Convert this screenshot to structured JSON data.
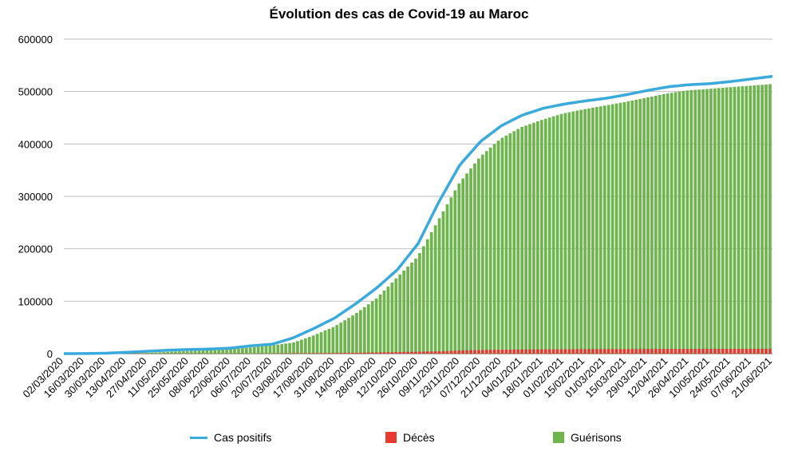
{
  "chart_data": {
    "type": "bar",
    "title": "Évolution des cas de Covid-19 au Maroc",
    "xlabel": "",
    "ylabel": "",
    "ylim": [
      0,
      600000
    ],
    "yticks": [
      0,
      100000,
      200000,
      300000,
      400000,
      500000,
      600000
    ],
    "ytick_labels": [
      "0",
      "100000",
      "200000",
      "300000",
      "400000",
      "500000",
      "600000"
    ],
    "x_tick_labels": [
      "02/03/2020",
      "16/03/2020",
      "30/03/2020",
      "13/04/2020",
      "27/04/2020",
      "11/05/2020",
      "25/05/2020",
      "08/06/2020",
      "22/06/2020",
      "06/07/2020",
      "20/07/2020",
      "03/08/2020",
      "17/08/2020",
      "31/08/2020",
      "14/09/2020",
      "28/09/2020",
      "12/10/2020",
      "26/10/2020",
      "09/11/2020",
      "23/11/2020",
      "07/12/2020",
      "21/12/2020",
      "04/01/2021",
      "18/01/2021",
      "01/02/2021",
      "15/02/2021",
      "01/03/2021",
      "15/03/2021",
      "29/03/2021",
      "12/04/2021",
      "26/04/2021",
      "10/05/2021",
      "24/05/2021",
      "07/06/2021",
      "21/06/2021"
    ],
    "grid": true,
    "legend_position": "bottom",
    "series": [
      {
        "name": "Cas positifs",
        "type": "line",
        "color": "#3aa9dc",
        "values": [
          1,
          150,
          800,
          2500,
          4500,
          6500,
          7800,
          8800,
          10500,
          15000,
          18000,
          30000,
          48000,
          68000,
          95000,
          125000,
          160000,
          210000,
          290000,
          360000,
          405000,
          435000,
          455000,
          468000,
          476000,
          482000,
          487000,
          494000,
          502000,
          509000,
          513000,
          515000,
          519000,
          524000,
          529000
        ]
      },
      {
        "name": "Décès",
        "type": "bar",
        "color": "#e8392f",
        "values": [
          0,
          5,
          50,
          130,
          170,
          190,
          200,
          210,
          230,
          250,
          300,
          700,
          900,
          1200,
          1700,
          2300,
          3000,
          3800,
          4500,
          5800,
          6900,
          7500,
          7800,
          8100,
          8400,
          8600,
          8700,
          8750,
          8850,
          8950,
          9000,
          9050,
          9100,
          9150,
          9200
        ]
      },
      {
        "name": "Guérisons",
        "type": "bar",
        "color": "#6db54c",
        "values": [
          0,
          10,
          100,
          500,
          1500,
          3500,
          5000,
          7000,
          8500,
          12000,
          16000,
          21000,
          35000,
          52000,
          76000,
          105000,
          145000,
          185000,
          255000,
          325000,
          375000,
          410000,
          432000,
          446000,
          458000,
          466000,
          473000,
          480000,
          488000,
          496000,
          502000,
          505000,
          508000,
          511000,
          514000
        ]
      }
    ]
  }
}
